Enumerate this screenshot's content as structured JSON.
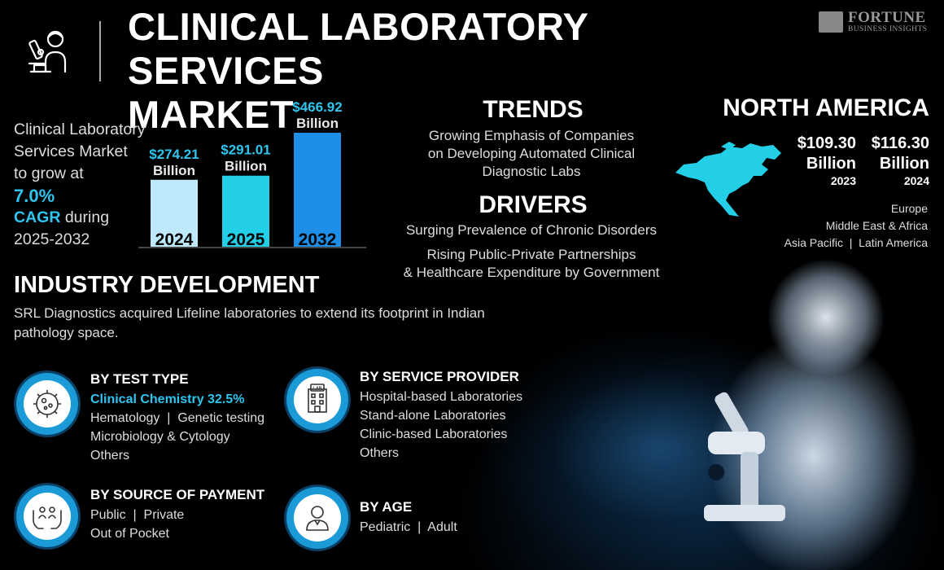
{
  "header": {
    "title_line1": "CLINICAL LABORATORY SERVICES",
    "title_line2": "MARKET",
    "brand_name": "FORTUNE",
    "brand_sub": "BUSINESS INSIGHTS"
  },
  "intro": {
    "line1": "Clinical Laboratory",
    "line2": "Services Market",
    "line3": "to grow at",
    "cagr_value": "7.0%",
    "cagr_label": "CAGR",
    "line5_rest": " during",
    "period": "2025-2032"
  },
  "chart_data": {
    "type": "bar",
    "categories": [
      "2024",
      "2025",
      "2032"
    ],
    "values": [
      274.21,
      291.01,
      466.92
    ],
    "value_labels": [
      [
        "$274.21",
        "Billion"
      ],
      [
        "$291.01",
        "Billion"
      ],
      [
        "$466.92",
        "Billion"
      ]
    ],
    "colors": [
      "#bde9fb",
      "#22cfe6",
      "#1e8fe8"
    ],
    "title": "",
    "xlabel": "",
    "ylabel": ""
  },
  "trends": {
    "title": "TRENDS",
    "lines": [
      "Growing Emphasis of Companies",
      "on Developing Automated Clinical",
      "Diagnostic Labs"
    ]
  },
  "drivers": {
    "title": "DRIVERS",
    "item1": "Surging Prevalence of Chronic Disorders",
    "item2_lines": [
      "Rising Public-Private Partnerships",
      "& Healthcare Expenditure by Government"
    ]
  },
  "north_america": {
    "title": "NORTH AMERICA",
    "values": [
      {
        "amount": "$109.30",
        "unit": "Billion",
        "year": "2023"
      },
      {
        "amount": "$116.30",
        "unit": "Billion",
        "year": "2024"
      }
    ],
    "map_color": "#22cfe6",
    "other_regions": [
      "Europe",
      "Middle East & Africa",
      "Asia Pacific  |  Latin America"
    ]
  },
  "industry": {
    "title": "INDUSTRY DEVELOPMENT",
    "text": "SRL Diagnostics acquired Lifeline laboratories to extend its footprint in Indian pathology space."
  },
  "segments": {
    "test_type": {
      "icon": "microbe-icon",
      "title": "BY TEST TYPE",
      "highlight": "Clinical Chemistry 32.5%",
      "lines": [
        "Hematology  |  Genetic testing",
        "Microbiology & Cytology",
        "Others"
      ]
    },
    "service_provider": {
      "icon": "lab-building-icon",
      "title": "BY SERVICE PROVIDER",
      "lines": [
        "Hospital-based Laboratories",
        "Stand-alone Laboratories",
        "Clinic-based Laboratories",
        "Others"
      ]
    },
    "payment": {
      "icon": "hands-people-icon",
      "title": "BY SOURCE OF PAYMENT",
      "lines": [
        "Public  |  Private",
        "Out of Pocket"
      ]
    },
    "age": {
      "icon": "person-icon",
      "title": "BY AGE",
      "lines": [
        "Pediatric  |  Adult"
      ]
    }
  }
}
